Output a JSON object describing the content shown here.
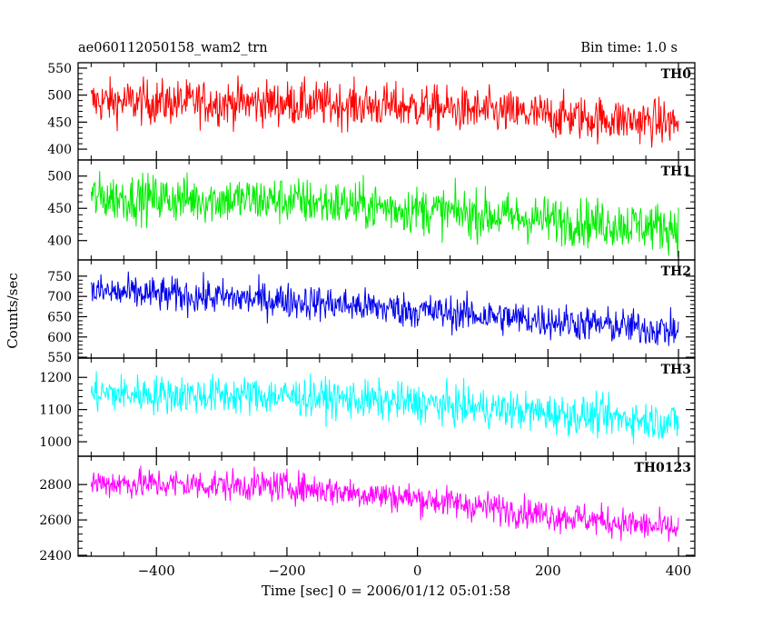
{
  "header": {
    "title": "ae060112050158_wam2_trn",
    "bin_time": "Bin time: 1.0 s"
  },
  "chart_data": {
    "type": "line",
    "title": "ae060112050158_wam2_trn",
    "subtitle": "Bin time: 1.0 s",
    "xlabel": "Time [sec] 0 = 2006/01/12 05:01:58",
    "ylabel": "Counts/sec",
    "xlim": [
      -520,
      425
    ],
    "x_range": [
      -500,
      400
    ],
    "xticks": [
      -400,
      -200,
      0,
      200,
      400
    ],
    "grid": false,
    "panels": [
      {
        "name": "TH0",
        "color": "#ff0000",
        "ylim": [
          380,
          560
        ],
        "yticks": [
          400,
          450,
          500,
          550
        ],
        "trend": [
          [
            -500,
            488
          ],
          [
            -200,
            485
          ],
          [
            0,
            478
          ],
          [
            200,
            462
          ],
          [
            400,
            448
          ]
        ],
        "noise": 38
      },
      {
        "name": "TH1",
        "color": "#00ee00",
        "ylim": [
          370,
          525
        ],
        "yticks": [
          400,
          450,
          500
        ],
        "trend": [
          [
            -500,
            467
          ],
          [
            -200,
            462
          ],
          [
            0,
            448
          ],
          [
            200,
            432
          ],
          [
            400,
            420
          ]
        ],
        "noise": 34
      },
      {
        "name": "TH2",
        "color": "#0000ee",
        "ylim": [
          548,
          790
        ],
        "yticks": [
          550,
          600,
          650,
          700,
          750
        ],
        "trend": [
          [
            -500,
            712
          ],
          [
            -200,
            690
          ],
          [
            0,
            665
          ],
          [
            200,
            640
          ],
          [
            400,
            615
          ]
        ],
        "noise": 40
      },
      {
        "name": "TH3",
        "color": "#00ffff",
        "ylim": [
          955,
          1260
        ],
        "yticks": [
          1000,
          1100,
          1200
        ],
        "trend": [
          [
            -500,
            1150
          ],
          [
            -200,
            1142
          ],
          [
            0,
            1120
          ],
          [
            200,
            1090
          ],
          [
            400,
            1060
          ]
        ],
        "noise": 55
      },
      {
        "name": "TH0123",
        "color": "#ff00ff",
        "ylim": [
          2395,
          2960
        ],
        "yticks": [
          2400,
          2600,
          2800
        ],
        "trend": [
          [
            -500,
            2810
          ],
          [
            -200,
            2790
          ],
          [
            0,
            2720
          ],
          [
            200,
            2630
          ],
          [
            400,
            2545
          ]
        ],
        "noise": 80
      }
    ]
  }
}
